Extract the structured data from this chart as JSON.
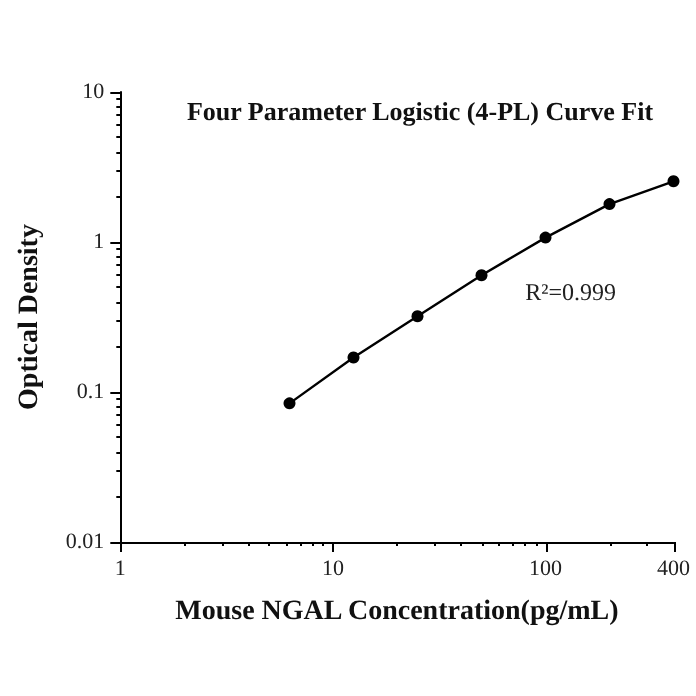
{
  "chart_data": {
    "type": "line",
    "title": "Four Parameter Logistic (4-PL) Curve Fit",
    "xlabel": "Mouse NGAL Concentration(pg/mL)",
    "ylabel": "Optical Density",
    "annotations": [
      "R²=0.999"
    ],
    "x": [
      6.25,
      12.5,
      25,
      50,
      100,
      200,
      400
    ],
    "series": [
      {
        "color": "#000000",
        "values": [
          0.084,
          0.17,
          0.32,
          0.6,
          1.07,
          1.79,
          2.54
        ]
      }
    ],
    "log": "xy",
    "xlim": [
      1,
      400
    ],
    "xticks": [
      1,
      10,
      100,
      400
    ],
    "ylim": [
      0.01,
      10
    ],
    "yticks": [
      0.01,
      0.1,
      1,
      10
    ],
    "marker": "circle",
    "line_style": "solid",
    "grid": false
  }
}
